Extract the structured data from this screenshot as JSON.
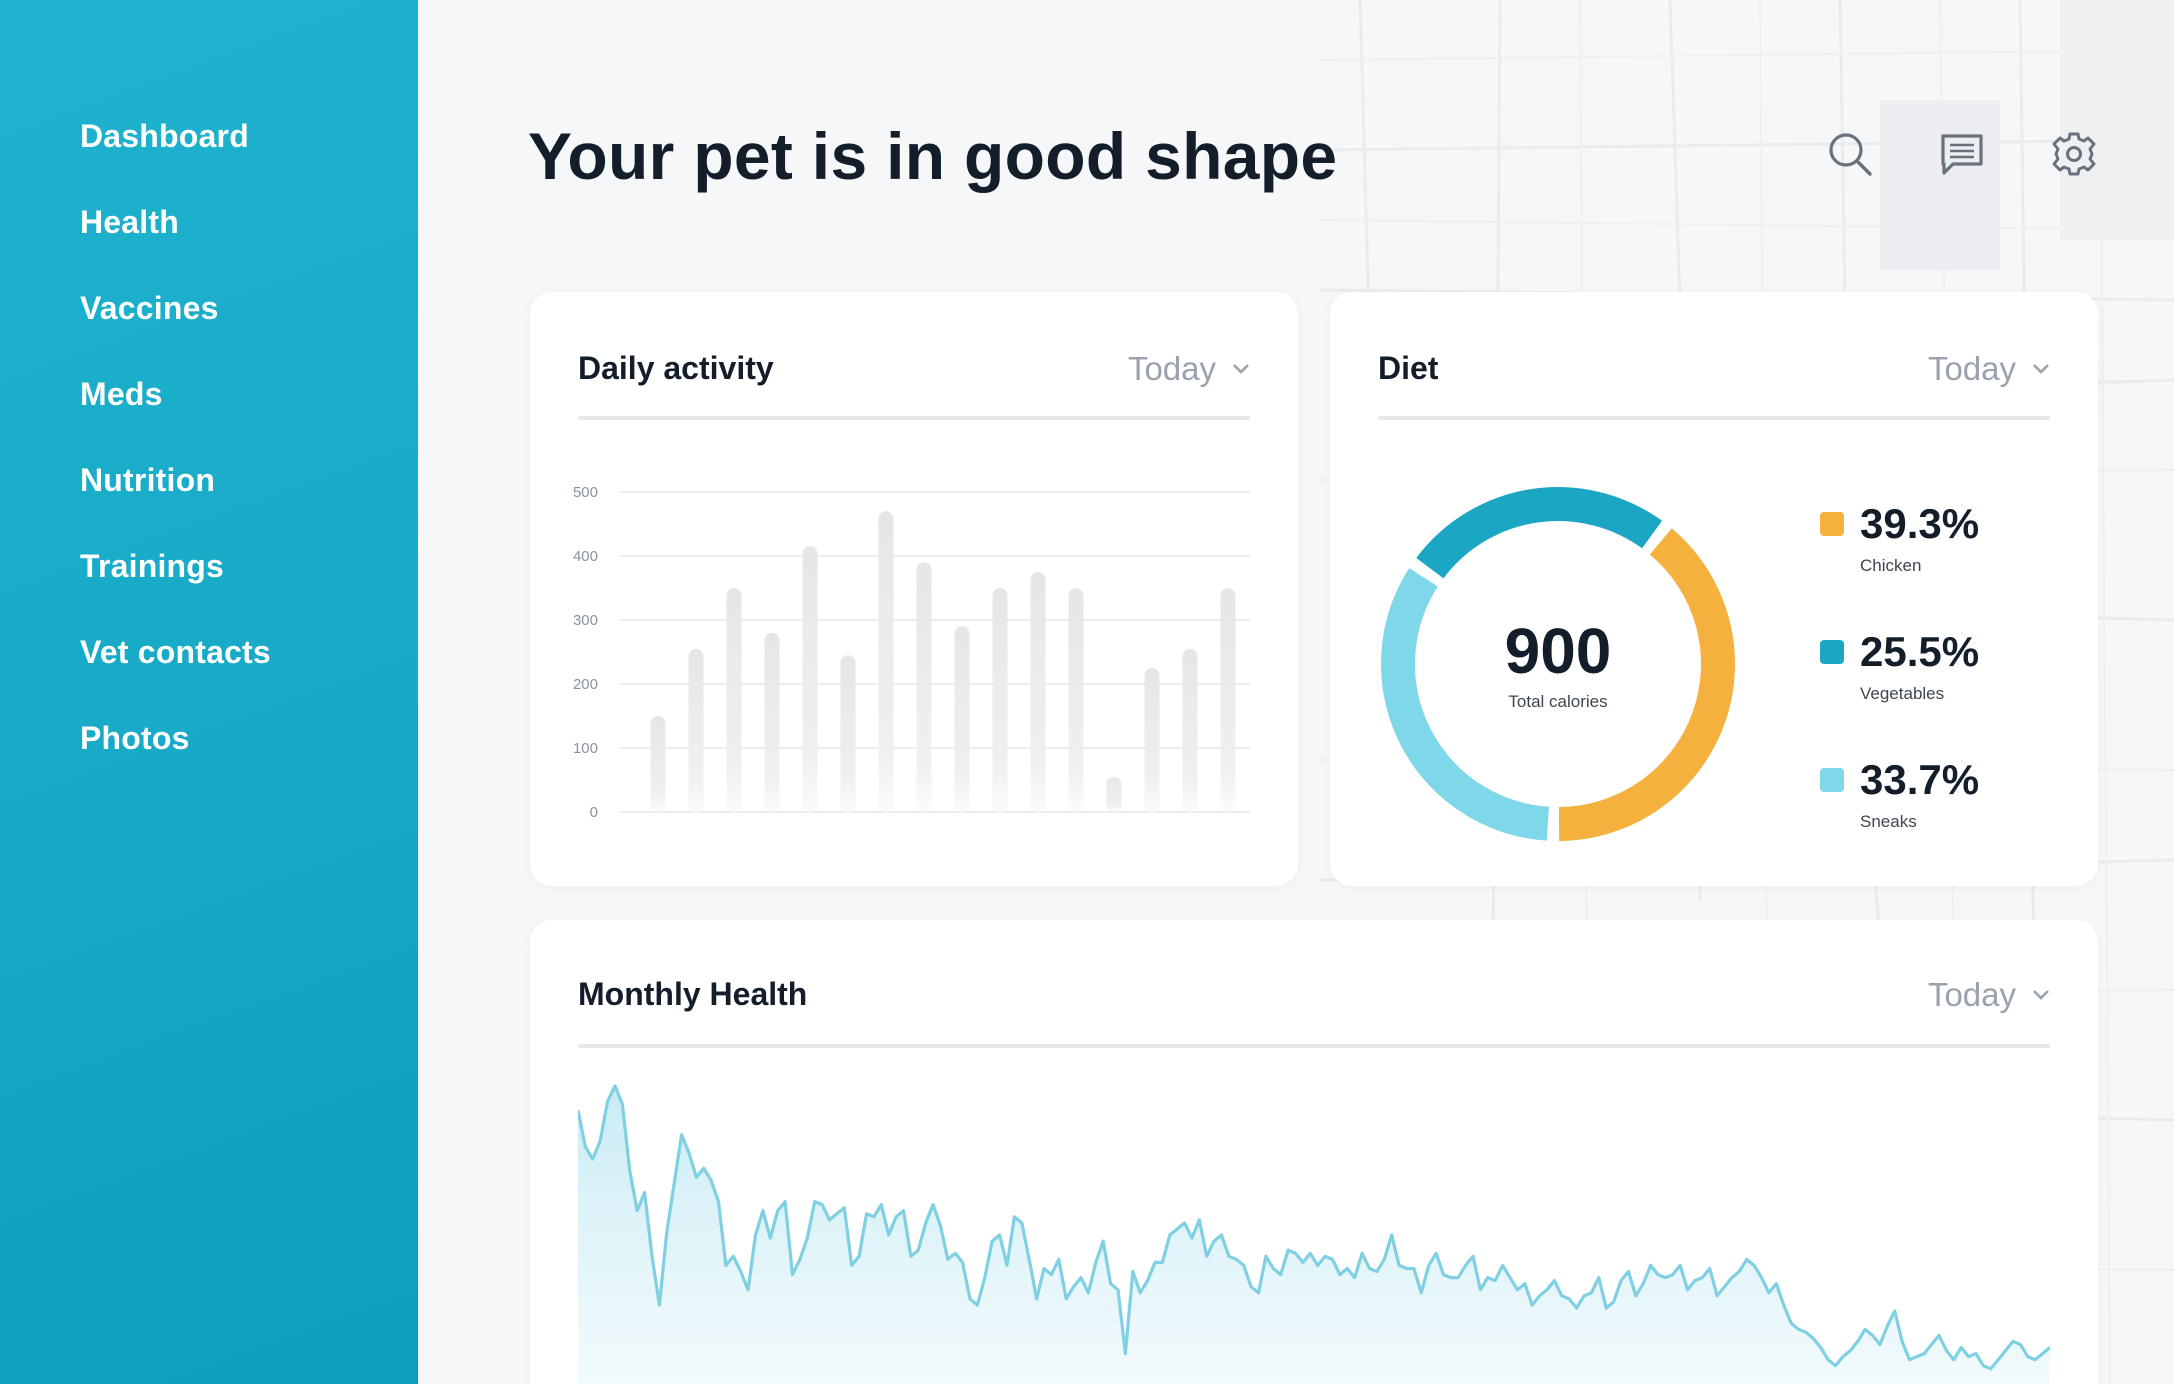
{
  "sidebar": {
    "items": [
      {
        "label": "Dashboard"
      },
      {
        "label": "Health"
      },
      {
        "label": "Vaccines"
      },
      {
        "label": "Meds"
      },
      {
        "label": "Nutrition"
      },
      {
        "label": "Trainings"
      },
      {
        "label": "Vet contacts"
      },
      {
        "label": "Photos"
      }
    ]
  },
  "header": {
    "title": "Your pet is in good shape",
    "icons": [
      "search-icon",
      "message-icon",
      "gear-icon"
    ]
  },
  "colors": {
    "sidebar": "#17a9c6",
    "chicken": "#f5b13d",
    "vegetables": "#1ba7c4",
    "sneaks": "#7fd7ea",
    "line": "#7fd0e3"
  },
  "daily_activity": {
    "title": "Daily activity",
    "filter": "Today",
    "chart_data": {
      "type": "bar",
      "title": "",
      "y_ticks": [
        "500",
        "400",
        "300",
        "200",
        "100",
        "0"
      ],
      "ylim": [
        0,
        500
      ],
      "grid": true,
      "values": [
        150,
        255,
        350,
        280,
        415,
        245,
        470,
        390,
        290,
        350,
        375,
        350,
        55,
        225,
        255,
        350
      ]
    }
  },
  "diet": {
    "title": "Diet",
    "filter": "Today",
    "center_value": "900",
    "center_label": "Total calories",
    "chart_data": {
      "type": "pie",
      "slices": [
        {
          "name": "Chicken",
          "value": 39.3,
          "label": "39.3%"
        },
        {
          "name": "Vegetables",
          "value": 25.5,
          "label": "25.5%"
        },
        {
          "name": "Sneaks",
          "value": 33.7,
          "label": "33.7%"
        }
      ]
    }
  },
  "monthly_health": {
    "title": "Monthly Health",
    "filter": "Today",
    "chart_data": {
      "type": "area",
      "ylim": [
        0,
        100
      ],
      "values": [
        90,
        78,
        74,
        80,
        93,
        98,
        92,
        70,
        57,
        63,
        42,
        26,
        50,
        66,
        82,
        76,
        68,
        71,
        67,
        60,
        39,
        42,
        37,
        31,
        49,
        57,
        48,
        57,
        60,
        36,
        41,
        48,
        60,
        59,
        54,
        56,
        58,
        39,
        42,
        56,
        55,
        59,
        49,
        55,
        57,
        42,
        44,
        53,
        59,
        52,
        41,
        43,
        40,
        28,
        26,
        35,
        47,
        49,
        39,
        55,
        53,
        41,
        28,
        38,
        36,
        41,
        28,
        32,
        35,
        30,
        40,
        47,
        33,
        31,
        10,
        37,
        30,
        34,
        40,
        40,
        49,
        51,
        53,
        48,
        54,
        42,
        47,
        49,
        42,
        41,
        39,
        32,
        30,
        42,
        38,
        36,
        44,
        43,
        40,
        43,
        39,
        42,
        41,
        36,
        38,
        35,
        43,
        38,
        37,
        41,
        49,
        39,
        38,
        38,
        30,
        39,
        43,
        36,
        35,
        35,
        39,
        42,
        31,
        35,
        34,
        39,
        35,
        31,
        33,
        26,
        29,
        31,
        34,
        29,
        28,
        25,
        29,
        30,
        35,
        25,
        27,
        34,
        37,
        29,
        33,
        39,
        36,
        35,
        36,
        39,
        31,
        34,
        35,
        38,
        29,
        32,
        35,
        37,
        41,
        39,
        35,
        30,
        33,
        26,
        20,
        18,
        17,
        15,
        12,
        8,
        6,
        9,
        11,
        14,
        18,
        16,
        13,
        19,
        24,
        14,
        8,
        9,
        10,
        13,
        16,
        11,
        8,
        12,
        9,
        10,
        6,
        5,
        8,
        11,
        14,
        13,
        9,
        8,
        10,
        12
      ]
    }
  }
}
